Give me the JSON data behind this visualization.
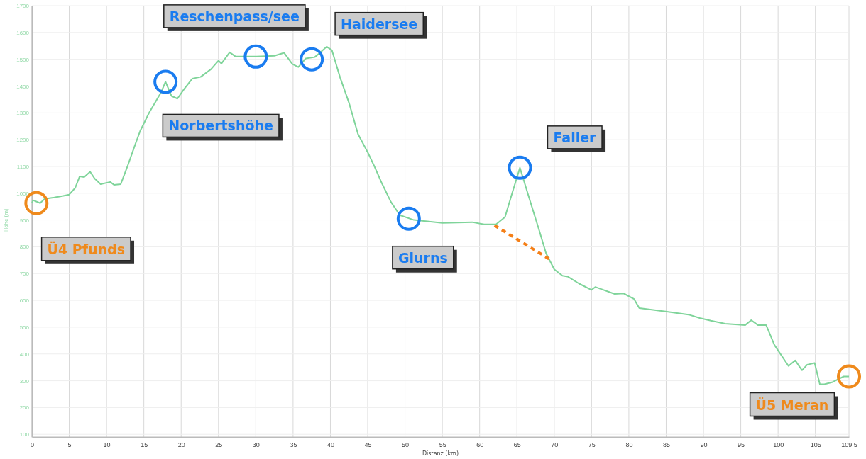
{
  "chart_data": {
    "type": "line",
    "xlabel": "Distanz (km)",
    "ylabel": "Höhe (m)",
    "xlim": [
      0,
      109.5
    ],
    "xticks": [
      0,
      5,
      10,
      15,
      20,
      25,
      30,
      35,
      40,
      45,
      50,
      55,
      60,
      65,
      70,
      75,
      80,
      85,
      90,
      95,
      100,
      105,
      109.5
    ],
    "ylim": [
      90,
      1700
    ],
    "yticks": [
      100,
      200,
      300,
      400,
      500,
      600,
      700,
      800,
      900,
      1000,
      1100,
      1200,
      1300,
      1400,
      1500,
      1600,
      1700
    ],
    "grid": true,
    "series": [
      {
        "color": "#7fd49a",
        "line_style": "solid",
        "x": [
          0,
          0.15,
          1.1,
          1.7,
          3,
          4.2,
          5,
          5.8,
          6.4,
          7,
          7.8,
          8.4,
          9.2,
          10.5,
          11,
          11.9,
          12.8,
          13.8,
          14.5,
          15.7,
          17.3,
          17.9,
          18.7,
          19.5,
          20.4,
          21.5,
          22.6,
          24,
          25,
          25.4,
          26.5,
          27.3,
          29.2,
          30.1,
          32.5,
          33.8,
          34.9,
          35.7,
          36.7,
          37.9,
          38.6,
          39.5,
          40.2,
          41.3,
          42.5,
          43.7,
          45,
          45.9,
          46.9,
          48.1,
          49.3,
          51.2,
          55,
          59,
          60.6,
          62.2,
          63.4,
          64.3,
          65.4,
          66.5,
          68,
          68.9,
          70,
          71.1,
          71.8,
          73.3,
          75,
          75.5,
          78.1,
          79.3,
          80.7,
          81.4,
          85.1,
          88,
          89.5,
          91,
          92.9,
          95.6,
          96.4,
          97.3,
          98.4,
          99.5,
          101.4,
          102.3,
          103.2,
          103.9,
          104.9,
          105.6,
          106.2,
          107.3,
          108.8,
          109.5
        ],
        "values": [
          963,
          974,
          963,
          979,
          984,
          990,
          995,
          1020,
          1063,
          1060,
          1080,
          1055,
          1034,
          1042,
          1031,
          1034,
          1100,
          1179,
          1232,
          1300,
          1376,
          1416,
          1363,
          1353,
          1389,
          1428,
          1434,
          1463,
          1495,
          1484,
          1526,
          1510,
          1510,
          1510,
          1513,
          1524,
          1482,
          1471,
          1503,
          1508,
          1524,
          1547,
          1534,
          1432,
          1337,
          1221,
          1153,
          1100,
          1037,
          968,
          918,
          900,
          889,
          892,
          884,
          884,
          911,
          995,
          1095,
          995,
          860,
          776,
          716,
          692,
          689,
          663,
          639,
          650,
          624,
          626,
          605,
          571,
          558,
          547,
          534,
          524,
          513,
          508,
          526,
          508,
          508,
          434,
          355,
          376,
          339,
          360,
          366,
          287,
          287,
          295,
          316,
          316
        ]
      },
      {
        "color": "#f57f17",
        "line_style": "dashed",
        "x": [
          62,
          69.3
        ],
        "values": [
          880,
          755
        ]
      },
      {
        "type": "scatter",
        "color": "#1a7cf0",
        "marker": "circle",
        "x": [
          17.9,
          30,
          37.5,
          50.5,
          65.4
        ],
        "values": [
          1416,
          1510,
          1500,
          905,
          1095
        ]
      },
      {
        "type": "scatter",
        "color": "#ef8a1c",
        "marker": "circle",
        "x": [
          0.6,
          109.5
        ],
        "values": [
          963,
          316
        ]
      }
    ],
    "annotations": [
      {
        "text": "Reschenpass/see",
        "x": 30,
        "y": 1510
      },
      {
        "text": "Haidersee",
        "x": 37.5,
        "y": 1500
      },
      {
        "text": "Norbertshöhe",
        "x": 17.9,
        "y": 1416
      },
      {
        "text": "Faller",
        "x": 65.4,
        "y": 1095
      },
      {
        "text": "Glurns",
        "x": 50.5,
        "y": 905
      },
      {
        "text": "Ü4 Pfunds",
        "x": 0.6,
        "y": 963
      },
      {
        "text": "Ü5 Meran",
        "x": 109.5,
        "y": 316
      }
    ]
  }
}
